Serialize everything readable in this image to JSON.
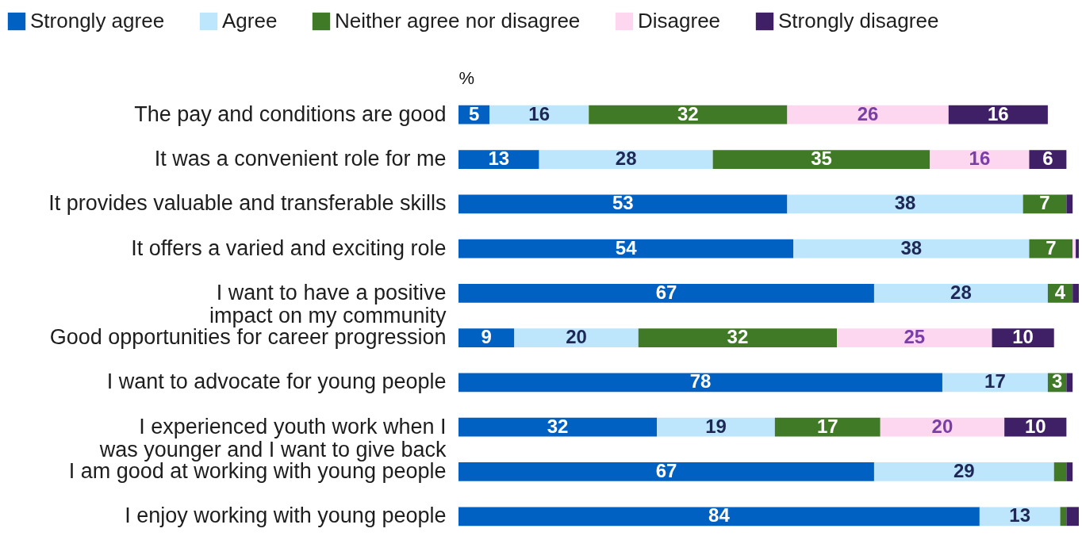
{
  "chart_data": {
    "type": "bar",
    "orientation": "horizontal",
    "stacked": true,
    "xlabel": "%",
    "xlim": [
      0,
      100
    ],
    "legend": "top",
    "grid": false,
    "categories": [
      "The pay and conditions are good",
      "It was a convenient role for me",
      "It provides valuable and transferable skills",
      "It offers a varied and exciting role",
      "I want to have a positive impact on my community",
      "Good opportunities for career progression",
      "I want to advocate for young people",
      "I experienced youth work when I was younger and I want to give back",
      "I am good at working with young people",
      "I enjoy working with young people"
    ],
    "series": [
      {
        "name": "Strongly agree",
        "color": "#0061c3",
        "values": [
          5,
          13,
          53,
          54,
          67,
          9,
          78,
          32,
          67,
          84
        ],
        "value_labels": [
          "5",
          "13",
          "53",
          "54",
          "67",
          "9",
          "78",
          "32",
          "67",
          "84"
        ]
      },
      {
        "name": "Agree",
        "color": "#bde5fb",
        "values": [
          16,
          28,
          38,
          38,
          28,
          20,
          17,
          19,
          29,
          13
        ],
        "value_labels": [
          "16",
          "28",
          "38",
          "38",
          "28",
          "20",
          "17",
          "19",
          "29",
          "13"
        ]
      },
      {
        "name": "Neither agree nor disagree",
        "color": "#417a27",
        "values": [
          32,
          35,
          7,
          7,
          4,
          32,
          3,
          17,
          2,
          1
        ],
        "value_labels": [
          "32",
          "35",
          "7",
          "7",
          "4",
          "32",
          "3",
          "17",
          null,
          null
        ]
      },
      {
        "name": "Disagree",
        "color": "#fdd7f0",
        "values": [
          26,
          16,
          0,
          0.5,
          0,
          25,
          0,
          20,
          0,
          0
        ],
        "value_labels": [
          "26",
          "16",
          null,
          null,
          null,
          "25",
          null,
          "20",
          null,
          null
        ]
      },
      {
        "name": "Strongly disagree",
        "color": "#3f2066",
        "values": [
          16,
          6,
          1,
          0.5,
          1,
          10,
          1,
          10,
          1,
          2
        ],
        "value_labels": [
          "16",
          "6",
          null,
          null,
          null,
          "10",
          null,
          "10",
          null,
          null
        ]
      }
    ]
  }
}
